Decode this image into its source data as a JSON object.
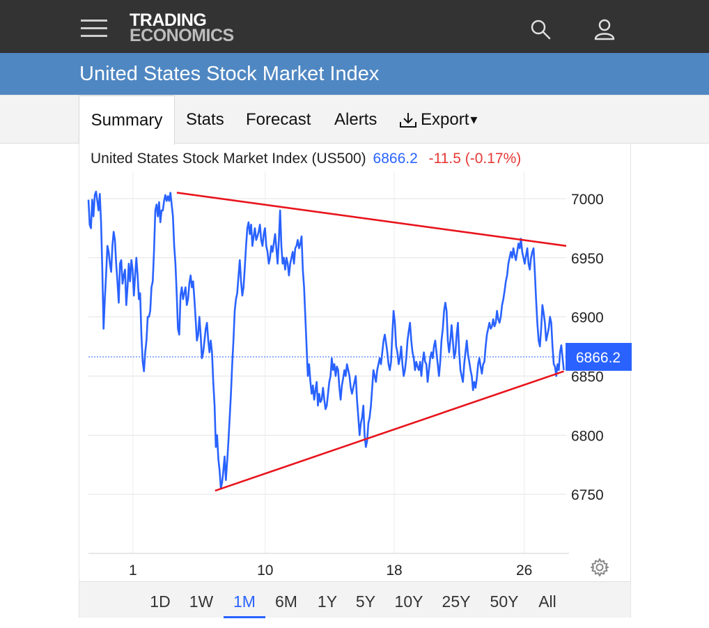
{
  "header": {
    "logo_line1": "TRADING",
    "logo_line2": "ECONOMICS",
    "menu_icon": "hamburger-menu-icon",
    "search_icon": "search-icon",
    "user_icon": "user-icon"
  },
  "page": {
    "title": "United States Stock Market Index"
  },
  "tabs": [
    {
      "label": "Summary",
      "active": true
    },
    {
      "label": "Stats"
    },
    {
      "label": "Forecast"
    },
    {
      "label": "Alerts"
    },
    {
      "label": "Export",
      "icon": "download-icon",
      "caret": "▾"
    }
  ],
  "quote": {
    "name": "United States Stock Market Index (US500)",
    "price": "6866.2",
    "change": "-11.5 (-0.17%)",
    "price_color": "#2962ff",
    "change_color": "#e53935"
  },
  "chart_data": {
    "type": "line",
    "x_ticks": [
      "1",
      "10",
      "18",
      "26"
    ],
    "y_ticks": [
      "7000",
      "6950",
      "6900",
      "6850",
      "6800",
      "6750"
    ],
    "ylim": [
      6700,
      7020
    ],
    "last_price_label": "6866.2",
    "series": [
      {
        "color": "#2962ff",
        "values": [
          6999,
          6978,
          6975,
          6999,
          6985,
          7003,
          7006,
          6998,
          6990,
          7004,
          6980,
          6940,
          6890,
          6915,
          6935,
          6960,
          6955,
          6945,
          6938,
          6960,
          6972,
          6965,
          6945,
          6930,
          6912,
          6945,
          6948,
          6928,
          6935,
          6940,
          6910,
          6925,
          6945,
          6930,
          6948,
          6940,
          6918,
          6935,
          6950,
          6935,
          6915,
          6920,
          6885,
          6862,
          6854,
          6870,
          6880,
          6900,
          6900,
          6905,
          6925,
          6930,
          6955,
          6990,
          6995,
          6985,
          6997,
          6980,
          6990,
          6990,
          6998,
          7003,
          6998,
          7002,
          6998,
          7005,
          6995,
          6985,
          6960,
          6945,
          6920,
          6890,
          6885,
          6918,
          6925,
          6915,
          6920,
          6925,
          6910,
          6915,
          6928,
          6935,
          6925,
          6930,
          6915,
          6898,
          6880,
          6885,
          6900,
          6885,
          6865,
          6870,
          6880,
          6890,
          6895,
          6880,
          6870,
          6880,
          6870,
          6845,
          6825,
          6790,
          6800,
          6780,
          6770,
          6755,
          6760,
          6770,
          6782,
          6762,
          6778,
          6795,
          6815,
          6835,
          6860,
          6880,
          6905,
          6915,
          6920,
          6935,
          6948,
          6930,
          6918,
          6925,
          6942,
          6960,
          6975,
          6980,
          6970,
          6978,
          6960,
          6968,
          6975,
          6965,
          6968,
          6972,
          6978,
          6965,
          6960,
          6970,
          6975,
          6960,
          6955,
          6945,
          6950,
          6960,
          6955,
          6962,
          6970,
          6958,
          6945,
          6965,
          6990,
          6960,
          6945,
          6950,
          6940,
          6950,
          6945,
          6935,
          6945,
          6950,
          6955,
          6945,
          6958,
          6960,
          6965,
          6958,
          6962,
          6968,
          6940,
          6925,
          6900,
          6875,
          6850,
          6860,
          6845,
          6835,
          6842,
          6830,
          6838,
          6845,
          6825,
          6835,
          6828,
          6830,
          6840,
          6830,
          6822,
          6825,
          6835,
          6845,
          6850,
          6865,
          6855,
          6860,
          6850,
          6858,
          6855,
          6840,
          6830,
          6842,
          6848,
          6855,
          6850,
          6860,
          6855,
          6850,
          6840,
          6835,
          6840,
          6845,
          6850,
          6830,
          6815,
          6800,
          6810,
          6815,
          6825,
          6800,
          6790,
          6795,
          6810,
          6815,
          6825,
          6840,
          6855,
          6850,
          6845,
          6855,
          6860,
          6865,
          6860,
          6870,
          6880,
          6885,
          6878,
          6870,
          6860,
          6855,
          6862,
          6885,
          6905,
          6895,
          6875,
          6870,
          6860,
          6865,
          6875,
          6860,
          6850,
          6855,
          6865,
          6880,
          6888,
          6895,
          6880,
          6870,
          6865,
          6855,
          6862,
          6858,
          6855,
          6862,
          6850,
          6862,
          6870,
          6862,
          6860,
          6845,
          6855,
          6865,
          6870,
          6865,
          6875,
          6880,
          6870,
          6860,
          6850,
          6862,
          6880,
          6890,
          6905,
          6912,
          6905,
          6880,
          6870,
          6880,
          6893,
          6880,
          6865,
          6870,
          6885,
          6895,
          6870,
          6855,
          6850,
          6845,
          6860,
          6870,
          6880,
          6868,
          6862,
          6855,
          6850,
          6838,
          6845,
          6840,
          6848,
          6860,
          6865,
          6858,
          6852,
          6860,
          6862,
          6875,
          6885,
          6890,
          6895,
          6890,
          6892,
          6898,
          6892,
          6895,
          6905,
          6898,
          6895,
          6900,
          6910,
          6915,
          6922,
          6930,
          6935,
          6945,
          6950,
          6955,
          6950,
          6958,
          6952,
          6948,
          6955,
          6962,
          6958,
          6966,
          6955,
          6950,
          6945,
          6952,
          6958,
          6945,
          6940,
          6950,
          6955,
          6958,
          6938,
          6915,
          6895,
          6880,
          6875,
          6890,
          6910,
          6903,
          6895,
          6880,
          6885,
          6890,
          6900,
          6895,
          6875,
          6860,
          6858,
          6850,
          6860,
          6855,
          6870,
          6876,
          6865,
          6855
        ]
      }
    ],
    "trendlines": [
      {
        "color": "#e8141c",
        "label": "upper",
        "points": [
          [
            0.185,
            7005
          ],
          [
            1.0,
            6960
          ]
        ]
      },
      {
        "color": "#e8141c",
        "label": "lower",
        "points": [
          [
            0.265,
            6753
          ],
          [
            0.995,
            6854
          ]
        ]
      }
    ]
  },
  "settings_icon": "gear-icon",
  "ranges": [
    "1D",
    "1W",
    "1M",
    "6M",
    "1Y",
    "5Y",
    "10Y",
    "25Y",
    "50Y",
    "All"
  ],
  "active_range": "1M"
}
